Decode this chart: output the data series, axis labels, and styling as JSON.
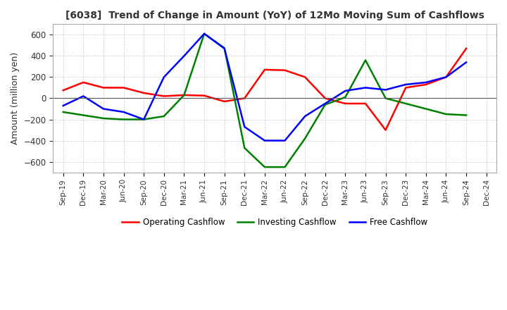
{
  "title": "[6038]  Trend of Change in Amount (YoY) of 12Mo Moving Sum of Cashflows",
  "ylabel": "Amount (million yen)",
  "legend": [
    "Operating Cashflow",
    "Investing Cashflow",
    "Free Cashflow"
  ],
  "colors": [
    "#ff0000",
    "#008000",
    "#0000ff"
  ],
  "x_labels": [
    "Sep-19",
    "Dec-19",
    "Mar-20",
    "Jun-20",
    "Sep-20",
    "Dec-20",
    "Mar-21",
    "Jun-21",
    "Sep-21",
    "Dec-21",
    "Mar-22",
    "Jun-22",
    "Sep-22",
    "Dec-22",
    "Mar-23",
    "Jun-23",
    "Sep-23",
    "Dec-23",
    "Mar-24",
    "Jun-24",
    "Sep-24",
    "Dec-24"
  ],
  "operating": [
    75,
    150,
    100,
    100,
    50,
    20,
    30,
    25,
    -30,
    0,
    270,
    265,
    200,
    0,
    -50,
    -50,
    -300,
    100,
    130,
    200,
    470,
    null
  ],
  "investing": [
    -130,
    -160,
    -190,
    -200,
    -200,
    -170,
    30,
    610,
    475,
    -470,
    -650,
    -650,
    -380,
    -60,
    10,
    360,
    0,
    -50,
    -100,
    -150,
    -160,
    null
  ],
  "free": [
    -70,
    20,
    -100,
    -130,
    -200,
    200,
    400,
    610,
    470,
    -270,
    -400,
    -400,
    -170,
    -50,
    70,
    100,
    80,
    130,
    150,
    200,
    340,
    null
  ],
  "ylim": [
    -700,
    700
  ],
  "yticks": [
    -600,
    -400,
    -200,
    0,
    200,
    400,
    600
  ],
  "background_color": "#ffffff",
  "grid_color": "#bbbbbb",
  "grid_style": ":"
}
